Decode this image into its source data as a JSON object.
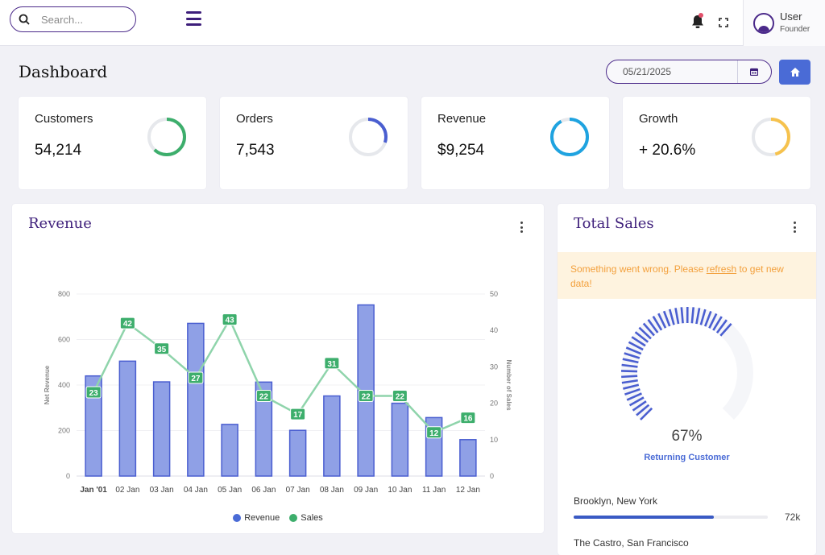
{
  "topbar": {
    "search_placeholder": "Search...",
    "user": {
      "name": "User",
      "role": "Founder"
    }
  },
  "page": {
    "title": "Dashboard",
    "date": "05/21/2025"
  },
  "kpis": [
    {
      "label": "Customers",
      "value": "54,214",
      "ring_fraction": 0.62,
      "color": "#3dae6c"
    },
    {
      "label": "Orders",
      "value": "7,543",
      "ring_fraction": 0.3,
      "color": "#4a5ed0"
    },
    {
      "label": "Revenue",
      "value": "$9,254",
      "ring_fraction": 0.92,
      "color": "#1fa3e0"
    },
    {
      "label": "Growth",
      "value": "+ 20.6%",
      "ring_fraction": 0.46,
      "color": "#f6c24d"
    }
  ],
  "revenue_card": {
    "title": "Revenue",
    "legend": [
      {
        "label": "Revenue",
        "color": "#4a6bd6"
      },
      {
        "label": "Sales",
        "color": "#3dae6c"
      }
    ]
  },
  "chart_data": {
    "type": "bar",
    "categories": [
      "Jan '01",
      "02 Jan",
      "03 Jan",
      "04 Jan",
      "05 Jan",
      "06 Jan",
      "07 Jan",
      "08 Jan",
      "09 Jan",
      "10 Jan",
      "11 Jan",
      "12 Jan"
    ],
    "series": [
      {
        "name": "Revenue",
        "type": "bar",
        "axis": "left",
        "values": [
          440,
          505,
          414,
          671,
          227,
          413,
          201,
          352,
          752,
          320,
          257,
          160
        ]
      },
      {
        "name": "Sales",
        "type": "line",
        "axis": "right",
        "values": [
          23,
          42,
          35,
          27,
          43,
          22,
          17,
          31,
          22,
          22,
          12,
          16
        ]
      }
    ],
    "ylabel": "Net Revenue",
    "y2label": "Number of Sales",
    "ylim": [
      0,
      800
    ],
    "y2lim": [
      0,
      50
    ],
    "yticks": [
      "0",
      "200",
      "400",
      "600",
      "800"
    ],
    "y2ticks": [
      "0",
      "10",
      "20",
      "30",
      "40",
      "50"
    ]
  },
  "sales_card": {
    "title": "Total Sales",
    "alert_prefix": "Something went wrong. Please ",
    "alert_link": "refresh",
    "alert_suffix": " to get new data!",
    "gauge_value": "67%",
    "gauge_fraction": 0.67,
    "gauge_label": "Returning Customer",
    "locations": [
      {
        "name": "Brooklyn, New York",
        "value": "72k",
        "fraction": 0.72
      },
      {
        "name": "The Castro, San Francisco"
      }
    ]
  }
}
